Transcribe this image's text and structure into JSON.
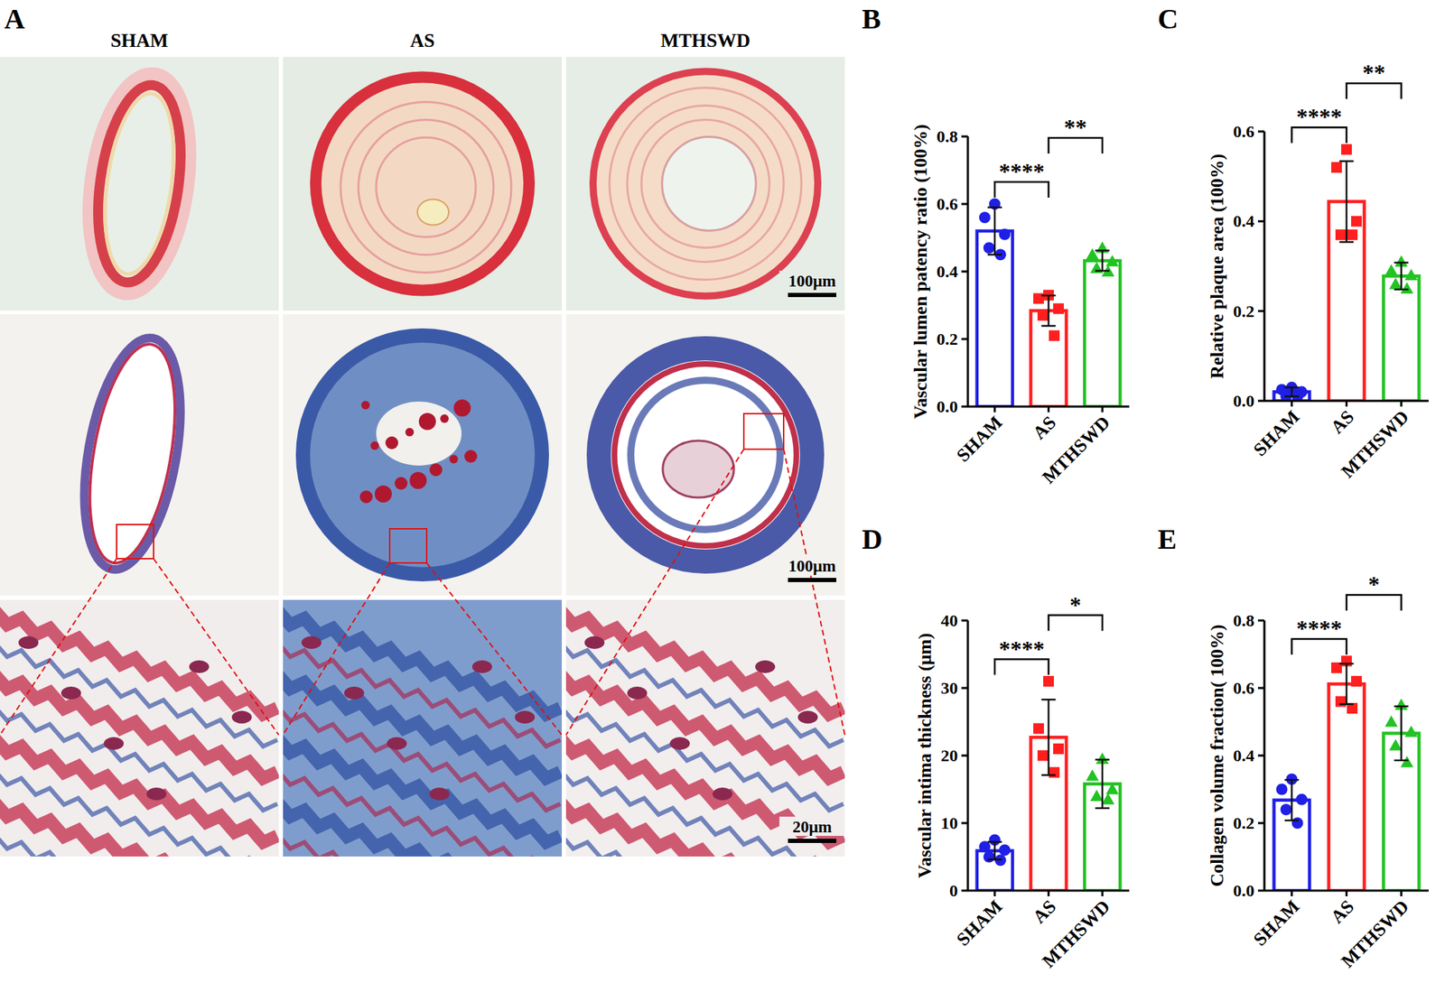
{
  "panel_a": {
    "letter": "A",
    "columns": [
      "SHAM",
      "AS",
      "MTHSWD"
    ],
    "scale_bars": [
      "100μm",
      "100μm",
      "20μm"
    ]
  },
  "chart_data": [
    {
      "panel": "B",
      "type": "bar",
      "y_label": "Vascular lumen patency ratio (100%)",
      "categories": [
        "SHAM",
        "AS",
        "MTHSWD"
      ],
      "values": [
        0.52,
        0.284,
        0.432
      ],
      "errors": [
        0.07,
        0.045,
        0.03
      ],
      "points": [
        [
          0.6,
          0.56,
          0.51,
          0.47,
          0.45
        ],
        [
          0.33,
          0.32,
          0.29,
          0.27,
          0.21
        ],
        [
          0.47,
          0.45,
          0.43,
          0.41,
          0.4
        ]
      ],
      "colors": [
        "#1f1fe6",
        "#ff1f1f",
        "#22c322"
      ],
      "ylim": [
        0,
        0.8
      ],
      "yticks": [
        {
          "value": 0,
          "label": "0.0"
        },
        0.2,
        0.4,
        0.6,
        0.8
      ],
      "significance": [
        {
          "from": 0,
          "to": 1,
          "label": "****"
        },
        {
          "from": 1,
          "to": 2,
          "label": "**"
        }
      ]
    },
    {
      "panel": "C",
      "type": "bar",
      "y_label": "Relative plaque area (100%)",
      "categories": [
        "SHAM",
        "AS",
        "MTHSWD"
      ],
      "values": [
        0.02,
        0.444,
        0.278
      ],
      "errors": [
        0.01,
        0.09,
        0.03
      ],
      "points": [
        [
          0.03,
          0.025,
          0.02,
          0.01,
          0.01
        ],
        [
          0.56,
          0.52,
          0.4,
          0.37,
          0.37
        ],
        [
          0.31,
          0.29,
          0.28,
          0.26,
          0.25
        ]
      ],
      "colors": [
        "#1f1fe6",
        "#ff1f1f",
        "#22c322"
      ],
      "ylim": [
        0,
        0.6
      ],
      "yticks": [
        {
          "value": 0,
          "label": "0.0"
        },
        0.2,
        0.4,
        0.6
      ],
      "significance": [
        {
          "from": 0,
          "to": 1,
          "label": "****"
        },
        {
          "from": 1,
          "to": 2,
          "label": "**"
        }
      ]
    },
    {
      "panel": "D",
      "type": "bar",
      "y_label": "Vascular intima thickness (μm)",
      "categories": [
        "SHAM",
        "AS",
        "MTHSWD"
      ],
      "values": [
        5.9,
        22.7,
        15.8
      ],
      "errors": [
        1.3,
        5.6,
        3.6
      ],
      "points": [
        [
          7.5,
          6.5,
          6,
          5,
          4.5
        ],
        [
          31,
          24,
          21,
          20,
          17.5
        ],
        [
          19.5,
          17,
          15,
          14,
          13.5
        ]
      ],
      "colors": [
        "#1f1fe6",
        "#ff1f1f",
        "#22c322"
      ],
      "ylim": [
        0,
        40
      ],
      "yticks": [
        0,
        10,
        20,
        30,
        40
      ],
      "significance": [
        {
          "from": 0,
          "to": 1,
          "label": "****"
        },
        {
          "from": 1,
          "to": 2,
          "label": "*"
        }
      ]
    },
    {
      "panel": "E",
      "type": "bar",
      "y_label": "Collagen volume fraction( 100%)",
      "categories": [
        "SHAM",
        "AS",
        "MTHSWD"
      ],
      "values": [
        0.268,
        0.612,
        0.466
      ],
      "errors": [
        0.06,
        0.06,
        0.08
      ],
      "points": [
        [
          0.33,
          0.3,
          0.27,
          0.24,
          0.2
        ],
        [
          0.68,
          0.66,
          0.62,
          0.56,
          0.54
        ],
        [
          0.55,
          0.5,
          0.47,
          0.43,
          0.38
        ]
      ],
      "colors": [
        "#1f1fe6",
        "#ff1f1f",
        "#22c322"
      ],
      "ylim": [
        0,
        0.8
      ],
      "yticks": [
        {
          "value": 0,
          "label": "0.0"
        },
        0.2,
        0.4,
        0.6,
        0.8
      ],
      "significance": [
        {
          "from": 0,
          "to": 1,
          "label": "****"
        },
        {
          "from": 1,
          "to": 2,
          "label": "*"
        }
      ]
    }
  ]
}
